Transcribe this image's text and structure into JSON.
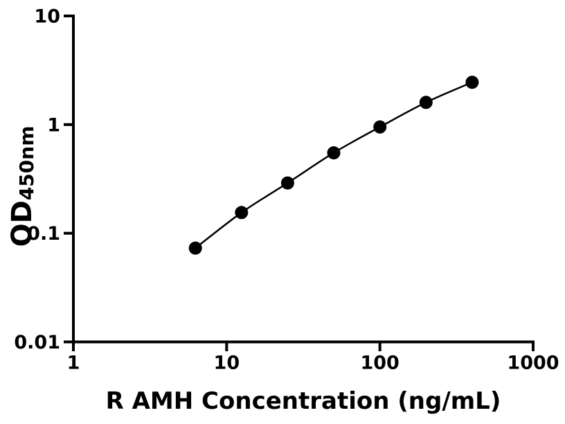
{
  "figure": {
    "background_color": "#ffffff",
    "ink_color": "#000000"
  },
  "chart_data": {
    "type": "line",
    "title": "",
    "xlabel": "R AMH Concentration (ng/mL)",
    "ylabel_main": "OD",
    "ylabel_sub": "450nm",
    "x_scale": "log10",
    "y_scale": "log10",
    "xlim": [
      1,
      1000
    ],
    "ylim": [
      0.01,
      10
    ],
    "x_ticks": {
      "values": [
        1,
        10,
        100,
        1000
      ],
      "labels": [
        "1",
        "10",
        "100",
        "1000"
      ]
    },
    "y_ticks": {
      "values": [
        0.01,
        0.1,
        1,
        10
      ],
      "labels": [
        "0.01",
        "0.1",
        "1",
        "10"
      ]
    },
    "grid": false,
    "legend": "none",
    "series": [
      {
        "marker": "filled-circle",
        "marker_color": "#000000",
        "line_color": "#000000",
        "x": [
          6.25,
          12.5,
          25,
          50,
          100,
          200,
          400
        ],
        "y": [
          0.073,
          0.155,
          0.29,
          0.55,
          0.95,
          1.6,
          2.45
        ]
      }
    ]
  }
}
